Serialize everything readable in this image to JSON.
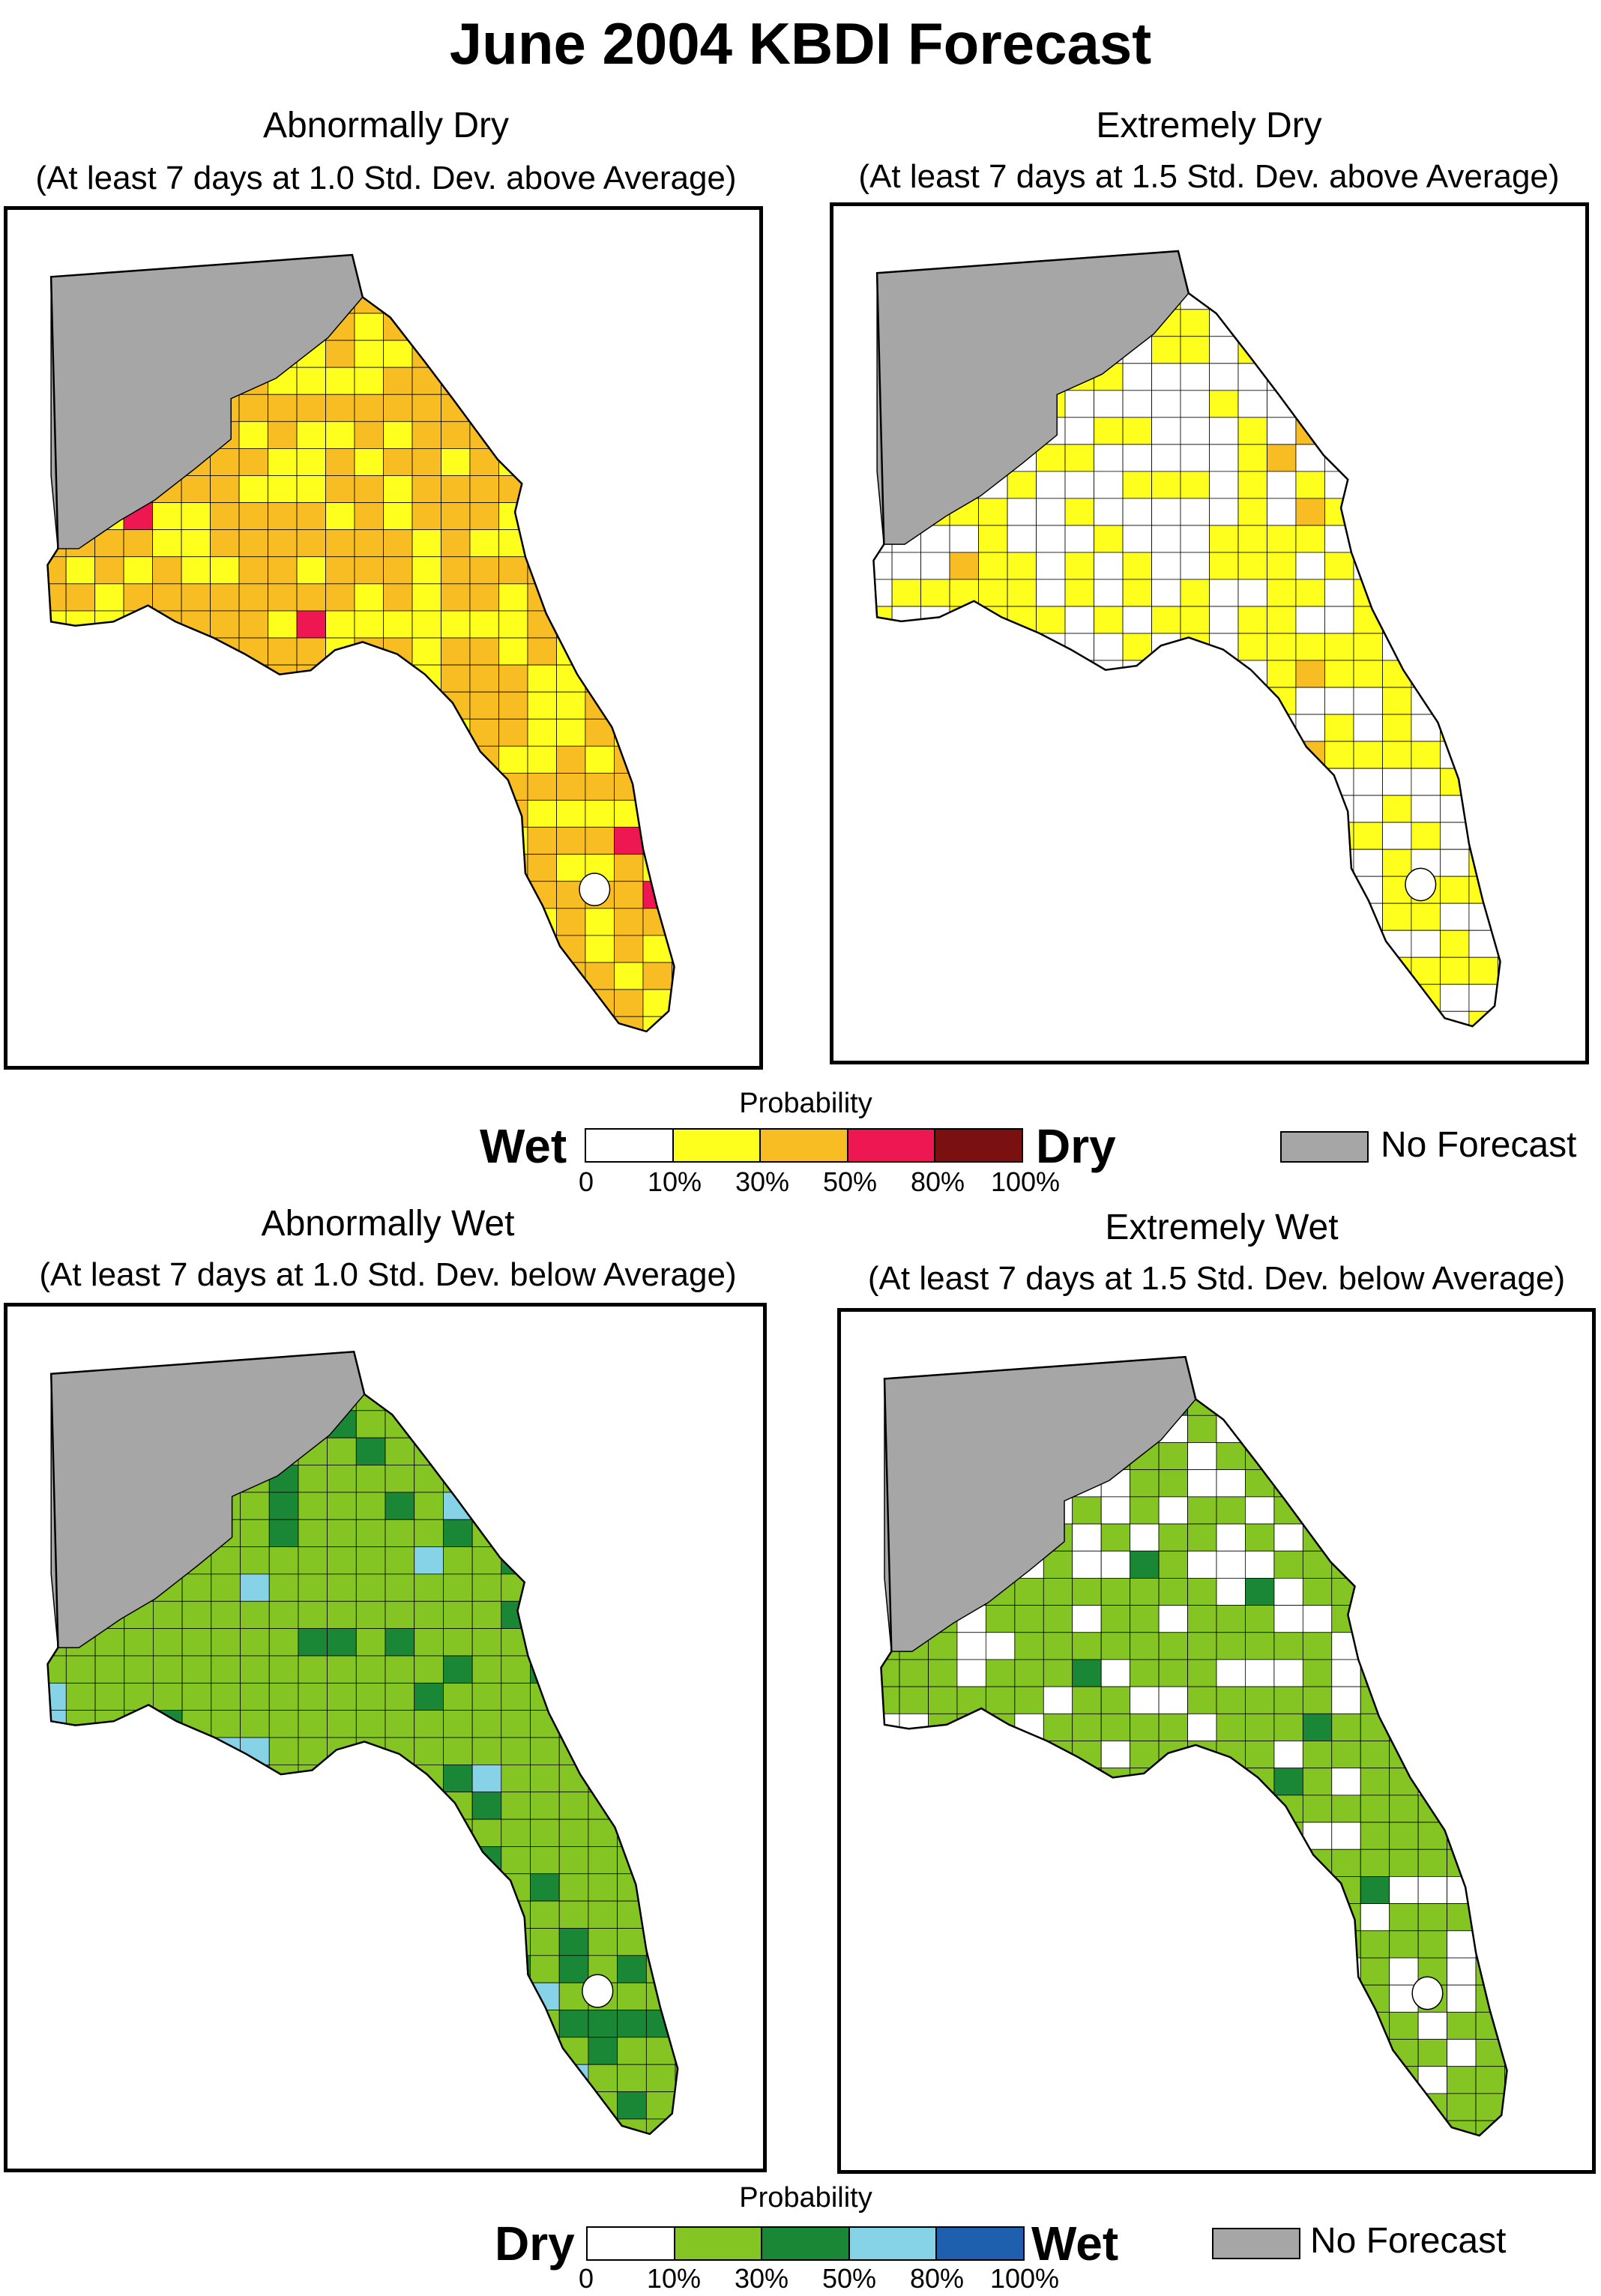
{
  "title": "June 2004 KBDI Forecast",
  "colors": {
    "no_forecast": "#a6a6a6",
    "dry_scale": [
      "#ffffff",
      "#ffff1e",
      "#f7bd22",
      "#ef1752",
      "#7a1010"
    ],
    "wet_scale": [
      "#ffffff",
      "#84c524",
      "#1a8736",
      "#86d2e6",
      "#1f60ae"
    ]
  },
  "panels": {
    "abnormally_dry": {
      "title": "Abnormally Dry",
      "subtitle": "(At least 7 days at 1.0 Std. Dev. above Average)",
      "base_fill": "#f7bd22",
      "patches": [
        {
          "fill": "#ffff1e",
          "fraction": 0.3
        },
        {
          "fill": "#ef1752",
          "fraction": 0.02
        }
      ]
    },
    "extremely_dry": {
      "title": "Extremely Dry",
      "subtitle": "(At least 7 days at 1.5 Std. Dev. above Average)",
      "base_fill": "#ffffff",
      "patches": [
        {
          "fill": "#ffff1e",
          "fraction": 0.45
        },
        {
          "fill": "#f7bd22",
          "fraction": 0.01
        }
      ]
    },
    "abnormally_wet": {
      "title": "Abnormally Wet",
      "subtitle": "(At least 7 days at 1.0 Std. Dev. below Average)",
      "base_fill": "#84c524",
      "patches": [
        {
          "fill": "#1a8736",
          "fraction": 0.15
        },
        {
          "fill": "#86d2e6",
          "fraction": 0.03
        }
      ]
    },
    "extremely_wet": {
      "title": "Extremely Wet",
      "subtitle": "(At least 7 days at 1.5 Std. Dev. below Average)",
      "base_fill": "#84c524",
      "patches": [
        {
          "fill": "#ffffff",
          "fraction": 0.25
        },
        {
          "fill": "#1a8736",
          "fraction": 0.02
        }
      ]
    }
  },
  "legend_dry": {
    "heading": "Probability",
    "left_word": "Wet",
    "right_word": "Dry",
    "ticks": [
      "0",
      "10%",
      "30%",
      "50%",
      "80%",
      "100%"
    ],
    "no_forecast_label": "No Forecast"
  },
  "legend_wet": {
    "heading": "Probability",
    "left_word": "Dry",
    "right_word": "Wet",
    "ticks": [
      "0",
      "10%",
      "30%",
      "50%",
      "80%",
      "100%"
    ],
    "no_forecast_label": "No Forecast"
  }
}
